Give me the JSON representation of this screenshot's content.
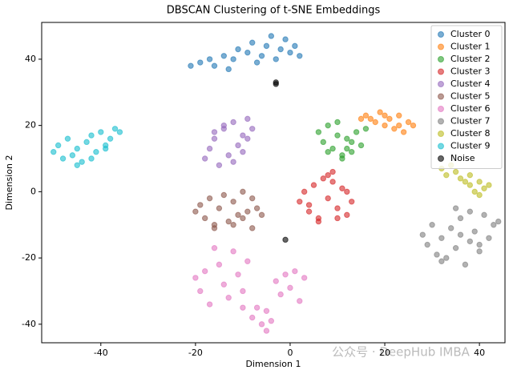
{
  "chart_data": {
    "type": "scatter",
    "title": "DBSCAN Clustering of t-SNE Embeddings",
    "x_label": "Dimension 1",
    "y_label": "Dimension 2",
    "xlim": [
      -52.5,
      45.4
    ],
    "ylim": [
      -45.6,
      51.1
    ],
    "xticks": [
      -40,
      -20,
      0,
      20,
      40
    ],
    "yticks": [
      -40,
      -20,
      0,
      20,
      40
    ],
    "legend": "upper right",
    "opacity": 0.6,
    "series": [
      {
        "name": "Cluster 0",
        "color": "#1f77b4",
        "x": [
          -21,
          -19,
          -17,
          -16,
          -14,
          -12,
          -11,
          -9,
          -8,
          -6,
          -5,
          -3,
          -2,
          -1,
          0,
          1,
          2,
          -13,
          -7,
          -4
        ],
        "values": [
          38,
          39,
          40,
          38,
          41,
          40,
          43,
          42,
          45,
          41,
          44,
          40,
          43,
          46,
          42,
          44,
          41,
          37,
          39,
          47
        ]
      },
      {
        "name": "Cluster 1",
        "color": "#ff7f0e",
        "x": [
          15,
          16,
          18,
          19,
          20,
          21,
          22,
          23,
          24,
          25,
          26,
          17,
          20,
          23
        ],
        "values": [
          22,
          23,
          21,
          24,
          20,
          22,
          19,
          23,
          18,
          21,
          20,
          22,
          23,
          20
        ]
      },
      {
        "name": "Cluster 2",
        "color": "#2ca02c",
        "x": [
          6,
          7,
          8,
          9,
          10,
          11,
          12,
          13,
          14,
          15,
          16,
          8,
          11,
          13,
          10,
          12
        ],
        "values": [
          18,
          15,
          20,
          13,
          17,
          11,
          16,
          12,
          18,
          14,
          19,
          12,
          10,
          15,
          21,
          13
        ]
      },
      {
        "name": "Cluster 3",
        "color": "#d62728",
        "x": [
          2,
          3,
          4,
          5,
          6,
          7,
          8,
          9,
          10,
          11,
          12,
          13,
          6,
          8,
          10,
          4,
          9,
          12
        ],
        "values": [
          -3,
          0,
          -6,
          2,
          -8,
          4,
          -2,
          6,
          -5,
          1,
          -7,
          -3,
          -9,
          5,
          -8,
          -4,
          3,
          0
        ]
      },
      {
        "name": "Cluster 4",
        "color": "#9467bd",
        "x": [
          -18,
          -17,
          -16,
          -15,
          -14,
          -13,
          -12,
          -11,
          -10,
          -9,
          -8,
          -16,
          -12,
          -10,
          -14,
          -9
        ],
        "values": [
          10,
          13,
          16,
          8,
          19,
          11,
          21,
          14,
          17,
          22,
          19,
          18,
          9,
          12,
          20,
          16
        ]
      },
      {
        "name": "Cluster 5",
        "color": "#8c564b",
        "x": [
          -20,
          -19,
          -18,
          -17,
          -16,
          -15,
          -14,
          -13,
          -12,
          -11,
          -10,
          -9,
          -8,
          -7,
          -6,
          -16,
          -12,
          -10,
          -8
        ],
        "values": [
          -6,
          -4,
          -8,
          -2,
          -10,
          -5,
          -1,
          -9,
          -3,
          -7,
          0,
          -6,
          -2,
          -5,
          -7,
          -11,
          -10,
          -8,
          -11
        ]
      },
      {
        "name": "Cluster 6",
        "color": "#e377c2",
        "x": [
          -20,
          -19,
          -18,
          -17,
          -15,
          -14,
          -13,
          -12,
          -11,
          -10,
          -9,
          -8,
          -7,
          -6,
          -5,
          -4,
          -3,
          -2,
          -1,
          0,
          1,
          2,
          3,
          -16,
          -10,
          -5
        ],
        "values": [
          -26,
          -30,
          -24,
          -34,
          -22,
          -28,
          -32,
          -18,
          -25,
          -30,
          -21,
          -38,
          -35,
          -40,
          -36,
          -39,
          -27,
          -31,
          -25,
          -29,
          -24,
          -33,
          -26,
          -17,
          -35,
          -42
        ]
      },
      {
        "name": "Cluster 7",
        "color": "#7f7f7f",
        "x": [
          28,
          29,
          30,
          31,
          32,
          33,
          34,
          35,
          36,
          37,
          38,
          39,
          40,
          41,
          42,
          43,
          44,
          32,
          36,
          40,
          35,
          38
        ],
        "values": [
          -13,
          -16,
          -10,
          -19,
          -14,
          -20,
          -11,
          -17,
          -8,
          -22,
          -15,
          -12,
          -18,
          -7,
          -14,
          -10,
          -9,
          -21,
          -13,
          -16,
          -5,
          -6
        ]
      },
      {
        "name": "Cluster 8",
        "color": "#bcbd22",
        "x": [
          32,
          33,
          34,
          35,
          36,
          37,
          38,
          39,
          40,
          41,
          42,
          38,
          40
        ],
        "values": [
          7,
          5,
          8,
          6,
          4,
          3,
          2,
          0,
          3,
          1,
          2,
          5,
          -1
        ]
      },
      {
        "name": "Cluster 9",
        "color": "#17becf",
        "x": [
          -50,
          -49,
          -48,
          -47,
          -46,
          -45,
          -44,
          -43,
          -42,
          -41,
          -40,
          -39,
          -38,
          -37,
          -36,
          -45,
          -42,
          -39
        ],
        "values": [
          12,
          14,
          10,
          16,
          11,
          13,
          9,
          15,
          17,
          12,
          18,
          14,
          16,
          19,
          18,
          8,
          10,
          13
        ]
      },
      {
        "name": "Noise",
        "color": "#000000",
        "x": [
          -3,
          -3,
          -1
        ],
        "values": [
          33,
          32.5,
          -14.5
        ]
      }
    ]
  },
  "watermark": "公众号 · DeepHub IMBA"
}
